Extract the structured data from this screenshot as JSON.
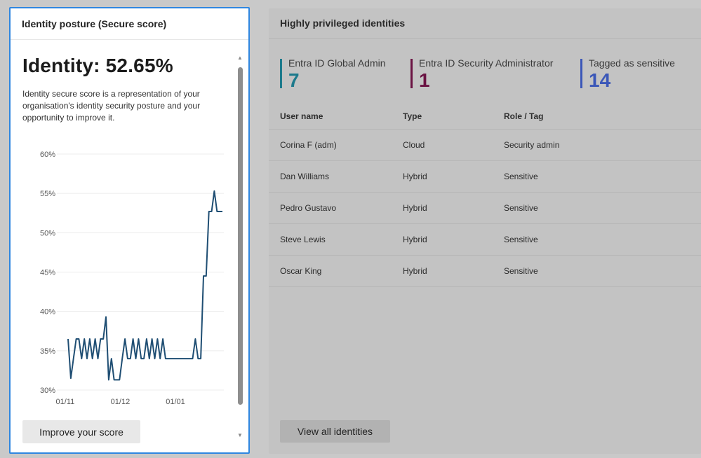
{
  "identity_card": {
    "header": "Identity posture (Secure score)",
    "score_title": "Identity: 52.65%",
    "description": "Identity secure score is a representation of your organisation's identity security posture and your opportunity to improve it.",
    "improve_button": "Improve your score",
    "line_color": "#1f4e73",
    "border_color": "#2f86e0",
    "chart_data": {
      "type": "line",
      "title": "",
      "xlabel": "",
      "ylabel": "",
      "ylim": [
        30,
        60
      ],
      "y_ticks": [
        "60%",
        "55%",
        "50%",
        "45%",
        "40%",
        "35%",
        "30%"
      ],
      "x_ticks": [
        "01/11",
        "01/12",
        "01/01"
      ],
      "grid": "horizontal",
      "series": [
        {
          "values": [
            36.5,
            31.5,
            34.0,
            36.5,
            36.5,
            34.0,
            36.5,
            34.0,
            36.5,
            34.0,
            36.5,
            34.0,
            36.5,
            36.5,
            39.3,
            31.3,
            34.0,
            31.3,
            31.3,
            31.3,
            34.0,
            36.5,
            34.0,
            34.0,
            36.5,
            34.0,
            36.5,
            34.0,
            34.0,
            36.5,
            34.0,
            36.5,
            34.0,
            36.5,
            34.0,
            36.5,
            34.0,
            34.0,
            34.0,
            34.0,
            34.0,
            34.0,
            34.0,
            34.0,
            34.0,
            34.0,
            34.0,
            36.5,
            34.0,
            34.0,
            44.5,
            44.5,
            52.7,
            52.7,
            55.3,
            52.7,
            52.7,
            52.7
          ]
        }
      ]
    }
  },
  "privileged_card": {
    "header": "Highly privileged identities",
    "kpis": [
      {
        "label": "Entra ID Global Admin",
        "value": "7",
        "color": "#1d7a8c"
      },
      {
        "label": "Entra ID Security Administrator",
        "value": "1",
        "color": "#6b1343"
      },
      {
        "label": "Tagged as sensitive",
        "value": "14",
        "color": "#3b57b8"
      }
    ],
    "table": {
      "columns": [
        "User name",
        "Type",
        "Role / Tag"
      ],
      "rows": [
        [
          "Corina F (adm)",
          "Cloud",
          "Security admin"
        ],
        [
          "Dan Williams",
          "Hybrid",
          "Sensitive"
        ],
        [
          "Pedro Gustavo",
          "Hybrid",
          "Sensitive"
        ],
        [
          "Steve Lewis",
          "Hybrid",
          "Sensitive"
        ],
        [
          "Oscar King",
          "Hybrid",
          "Sensitive"
        ]
      ]
    },
    "view_button": "View all identities"
  }
}
